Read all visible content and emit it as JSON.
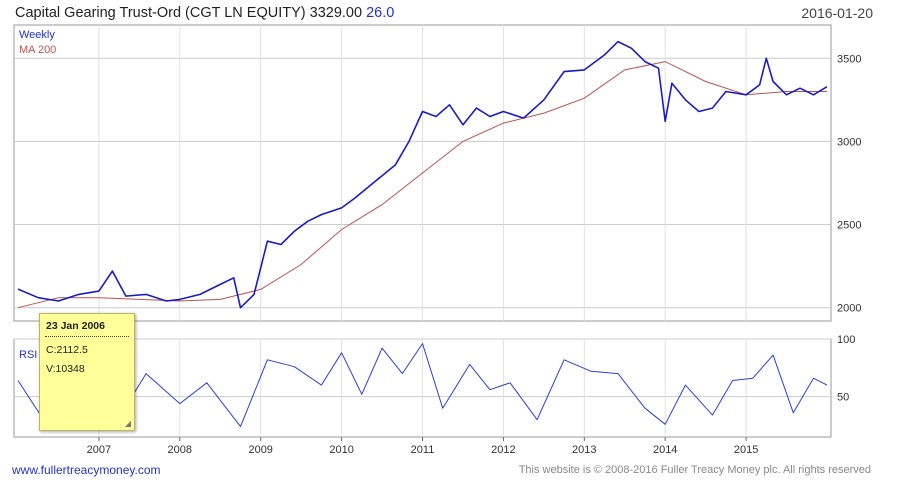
{
  "header": {
    "title": "Capital Gearing Trust-Ord (CGT LN EQUITY)",
    "price": "3329.00",
    "change": "26.0",
    "date": "2016-01-20"
  },
  "tooltip": {
    "date": "23 Jan 2006",
    "close": "C:2112.5",
    "volume": "V:10348"
  },
  "footer": {
    "site": "www.fullertreacymoney.com",
    "copyright": "This website is © 2008-2016 Fuller Treacy Money plc. All rights reserved"
  },
  "colors": {
    "price": "#1a1acc",
    "ma": "#c0504d",
    "rsi": "#2a3fd6"
  },
  "chart_data": [
    {
      "type": "line",
      "title": "",
      "xlabel": "",
      "ylabel": "",
      "legend": [
        "Weekly",
        "MA 200"
      ],
      "legend_position": "top-left",
      "y_ticks": [
        "3500",
        "3000",
        "2500",
        "2000"
      ],
      "ylim": [
        1920,
        3700
      ],
      "x_tick_labels": [
        "2007",
        "2008",
        "2009",
        "2010",
        "2011",
        "2012",
        "2013",
        "2014",
        "2015"
      ],
      "x_range": [
        "2006-01",
        "2016-01"
      ],
      "grid": true,
      "series": [
        {
          "name": "Weekly",
          "x": [
            "2006-01",
            "2006-04",
            "2006-07",
            "2006-10",
            "2007-01",
            "2007-03",
            "2007-05",
            "2007-08",
            "2007-11",
            "2008-01",
            "2008-04",
            "2008-07",
            "2008-09",
            "2008-10",
            "2008-12",
            "2009-02",
            "2009-04",
            "2009-06",
            "2009-08",
            "2009-10",
            "2010-01",
            "2010-03",
            "2010-06",
            "2010-09",
            "2010-11",
            "2011-01",
            "2011-03",
            "2011-05",
            "2011-07",
            "2011-09",
            "2011-11",
            "2012-01",
            "2012-04",
            "2012-07",
            "2012-10",
            "2013-01",
            "2013-04",
            "2013-06",
            "2013-08",
            "2013-10",
            "2013-12",
            "2014-01",
            "2014-02",
            "2014-04",
            "2014-06",
            "2014-08",
            "2014-10",
            "2015-01",
            "2015-03",
            "2015-04",
            "2015-05",
            "2015-07",
            "2015-09",
            "2015-11",
            "2016-01"
          ],
          "values": [
            2112,
            2060,
            2040,
            2080,
            2100,
            2220,
            2070,
            2080,
            2040,
            2050,
            2080,
            2140,
            2180,
            2000,
            2080,
            2400,
            2380,
            2460,
            2520,
            2560,
            2600,
            2660,
            2760,
            2860,
            3000,
            3180,
            3150,
            3220,
            3100,
            3200,
            3150,
            3180,
            3140,
            3250,
            3420,
            3430,
            3520,
            3600,
            3560,
            3480,
            3440,
            3120,
            3350,
            3250,
            3180,
            3200,
            3300,
            3280,
            3340,
            3500,
            3360,
            3280,
            3320,
            3280,
            3329
          ]
        },
        {
          "name": "MA 200",
          "x": [
            "2006-01",
            "2006-07",
            "2007-01",
            "2007-07",
            "2008-01",
            "2008-07",
            "2009-01",
            "2009-07",
            "2010-01",
            "2010-07",
            "2011-01",
            "2011-07",
            "2012-01",
            "2012-07",
            "2013-01",
            "2013-07",
            "2014-01",
            "2014-07",
            "2015-01",
            "2015-07",
            "2016-01"
          ],
          "values": [
            2000,
            2060,
            2060,
            2050,
            2040,
            2050,
            2110,
            2260,
            2470,
            2620,
            2810,
            3000,
            3110,
            3170,
            3260,
            3430,
            3480,
            3360,
            3280,
            3300,
            3300
          ]
        }
      ]
    },
    {
      "type": "line",
      "title": "",
      "legend": [
        "RSI"
      ],
      "legend_position": "top-left",
      "y_ticks": [
        "100",
        "50"
      ],
      "ylim": [
        15,
        100
      ],
      "series": [
        {
          "name": "RSI",
          "x": [
            "2006-01",
            "2006-05",
            "2006-09",
            "2007-01",
            "2007-04",
            "2007-08",
            "2008-01",
            "2008-05",
            "2008-10",
            "2009-02",
            "2009-06",
            "2009-10",
            "2010-01",
            "2010-04",
            "2010-07",
            "2010-10",
            "2011-01",
            "2011-04",
            "2011-08",
            "2011-11",
            "2012-02",
            "2012-06",
            "2012-10",
            "2013-02",
            "2013-06",
            "2013-10",
            "2014-01",
            "2014-04",
            "2014-08",
            "2014-11",
            "2015-02",
            "2015-05",
            "2015-08",
            "2015-11",
            "2016-01"
          ],
          "values": [
            64,
            28,
            55,
            74,
            32,
            70,
            44,
            62,
            24,
            82,
            76,
            60,
            88,
            52,
            92,
            70,
            96,
            40,
            78,
            56,
            62,
            30,
            82,
            72,
            70,
            40,
            26,
            60,
            34,
            64,
            66,
            86,
            36,
            66,
            60
          ]
        }
      ]
    }
  ]
}
